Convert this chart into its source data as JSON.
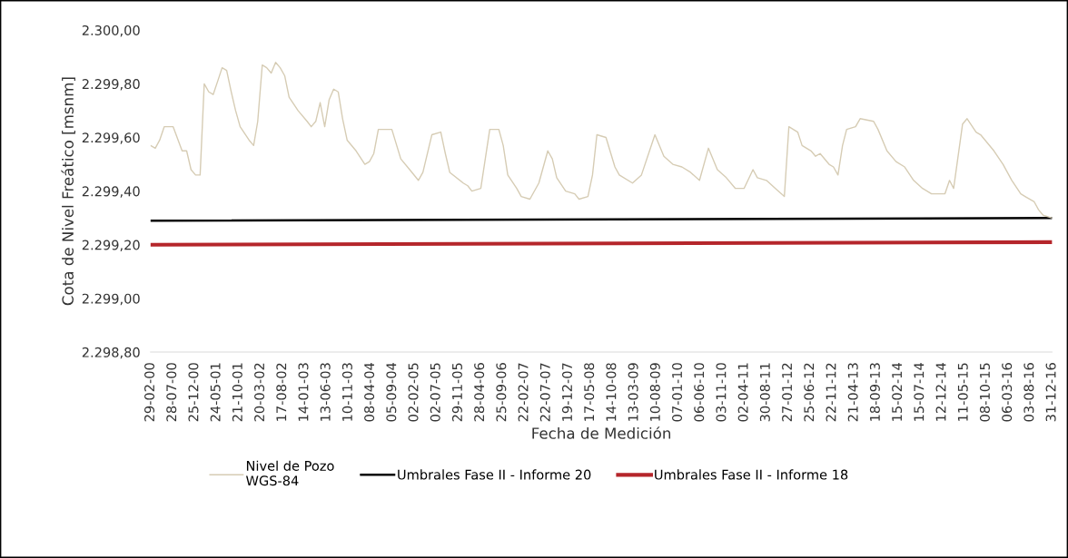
{
  "chart_data": {
    "type": "line",
    "xlabel": "Fecha de Medición",
    "ylabel": "Cota de Nivel Freático [msnm]",
    "xlim": [
      "2000-02-29",
      "2016-12-31"
    ],
    "xticks": [
      {
        "value": "2000-02-29",
        "label": "29-02-00"
      },
      {
        "value": "2000-07-28",
        "label": "28-07-00"
      },
      {
        "value": "2000-12-25",
        "label": "25-12-00"
      },
      {
        "value": "2001-05-24",
        "label": "24-05-01"
      },
      {
        "value": "2001-10-21",
        "label": "21-10-01"
      },
      {
        "value": "2002-03-20",
        "label": "20-03-02"
      },
      {
        "value": "2002-08-17",
        "label": "17-08-02"
      },
      {
        "value": "2003-01-14",
        "label": "14-01-03"
      },
      {
        "value": "2003-06-13",
        "label": "13-06-03"
      },
      {
        "value": "2003-11-10",
        "label": "10-11-03"
      },
      {
        "value": "2004-04-08",
        "label": "08-04-04"
      },
      {
        "value": "2004-09-05",
        "label": "05-09-04"
      },
      {
        "value": "2005-02-02",
        "label": "02-02-05"
      },
      {
        "value": "2005-07-02",
        "label": "02-07-05"
      },
      {
        "value": "2005-11-29",
        "label": "29-11-05"
      },
      {
        "value": "2006-04-28",
        "label": "28-04-06"
      },
      {
        "value": "2006-09-25",
        "label": "25-09-06"
      },
      {
        "value": "2007-02-22",
        "label": "22-02-07"
      },
      {
        "value": "2007-07-22",
        "label": "22-07-07"
      },
      {
        "value": "2007-12-19",
        "label": "19-12-07"
      },
      {
        "value": "2008-05-17",
        "label": "17-05-08"
      },
      {
        "value": "2008-10-14",
        "label": "14-10-08"
      },
      {
        "value": "2009-03-13",
        "label": "13-03-09"
      },
      {
        "value": "2009-08-10",
        "label": "10-08-09"
      },
      {
        "value": "2010-01-07",
        "label": "07-01-10"
      },
      {
        "value": "2010-06-06",
        "label": "06-06-10"
      },
      {
        "value": "2010-11-03",
        "label": "03-11-10"
      },
      {
        "value": "2011-04-02",
        "label": "02-04-11"
      },
      {
        "value": "2011-08-30",
        "label": "30-08-11"
      },
      {
        "value": "2012-01-27",
        "label": "27-01-12"
      },
      {
        "value": "2012-06-25",
        "label": "25-06-12"
      },
      {
        "value": "2012-11-22",
        "label": "22-11-12"
      },
      {
        "value": "2013-04-21",
        "label": "21-04-13"
      },
      {
        "value": "2013-09-18",
        "label": "18-09-13"
      },
      {
        "value": "2014-02-15",
        "label": "15-02-14"
      },
      {
        "value": "2014-07-15",
        "label": "15-07-14"
      },
      {
        "value": "2014-12-12",
        "label": "12-12-14"
      },
      {
        "value": "2015-05-11",
        "label": "11-05-15"
      },
      {
        "value": "2015-10-08",
        "label": "08-10-15"
      },
      {
        "value": "2016-03-06",
        "label": "06-03-16"
      },
      {
        "value": "2016-08-03",
        "label": "03-08-16"
      },
      {
        "value": "2016-12-31",
        "label": "31-12-16"
      }
    ],
    "ylim": [
      2298.8,
      2300.0
    ],
    "yticks": [
      {
        "value": 2298.8,
        "label": "2.298,80"
      },
      {
        "value": 2299.0,
        "label": "2.299,00"
      },
      {
        "value": 2299.2,
        "label": "2.299,20"
      },
      {
        "value": 2299.4,
        "label": "2.299,40"
      },
      {
        "value": 2299.6,
        "label": "2.299,60"
      },
      {
        "value": 2299.8,
        "label": "2.299,80"
      },
      {
        "value": 2300.0,
        "label": "2.300,00"
      }
    ],
    "grid": false,
    "legend": "bottom",
    "line_style": "solid",
    "marker": "none",
    "series": [
      {
        "name": "Nivel de Pozo\nWGS-84",
        "color": "#d6ccb4",
        "x": [
          "2000-02-29",
          "2000-04",
          "2000-05",
          "2000-06",
          "2000-07",
          "2000-08",
          "2000-10",
          "2000-11",
          "2000-12",
          "2001-01",
          "2001-02",
          "2001-03",
          "2001-04",
          "2001-05",
          "2001-06",
          "2001-07",
          "2001-08",
          "2001-09",
          "2001-10",
          "2001-11",
          "2002-01",
          "2002-02",
          "2002-03",
          "2002-04",
          "2002-05",
          "2002-06",
          "2002-07",
          "2002-08",
          "2002-09",
          "2002-10",
          "2002-12",
          "2003-02",
          "2003-03",
          "2003-04",
          "2003-05",
          "2003-06",
          "2003-07",
          "2003-08",
          "2003-09",
          "2003-10",
          "2003-11",
          "2004-01",
          "2004-03",
          "2004-04",
          "2004-05",
          "2004-06",
          "2004-08",
          "2004-09",
          "2004-11",
          "2005-01",
          "2005-03",
          "2005-04",
          "2005-06",
          "2005-08",
          "2005-09",
          "2005-10",
          "2006-01",
          "2006-02",
          "2006-03",
          "2006-05",
          "2006-07",
          "2006-09",
          "2006-10",
          "2006-11",
          "2007-01",
          "2007-02",
          "2007-04",
          "2007-06",
          "2007-08",
          "2007-09",
          "2007-10",
          "2007-12",
          "2008-02",
          "2008-03",
          "2008-05",
          "2008-06",
          "2008-07",
          "2008-09",
          "2008-11",
          "2008-12",
          "2009-03",
          "2009-05",
          "2009-08",
          "2009-10",
          "2009-12",
          "2010-02",
          "2010-04",
          "2010-06",
          "2010-08",
          "2010-10",
          "2010-12",
          "2011-02",
          "2011-04",
          "2011-06",
          "2011-07",
          "2011-09",
          "2011-11",
          "2012-01",
          "2012-02",
          "2012-04",
          "2012-05",
          "2012-07",
          "2012-08",
          "2012-09",
          "2012-11",
          "2012-12",
          "2013-01",
          "2013-02",
          "2013-03",
          "2013-05",
          "2013-06",
          "2013-09",
          "2013-10",
          "2013-12",
          "2014-02",
          "2014-04",
          "2014-06",
          "2014-08",
          "2014-10",
          "2015-01",
          "2015-02",
          "2015-03",
          "2015-05",
          "2015-06",
          "2015-08",
          "2015-09",
          "2015-12",
          "2016-02",
          "2016-04",
          "2016-06",
          "2016-07",
          "2016-09",
          "2016-10",
          "2016-11",
          "2016-12-31"
        ],
        "values": [
          2299.57,
          2299.56,
          2299.59,
          2299.64,
          2299.64,
          2299.64,
          2299.55,
          2299.55,
          2299.48,
          2299.46,
          2299.46,
          2299.8,
          2299.77,
          2299.76,
          2299.81,
          2299.86,
          2299.85,
          2299.77,
          2299.7,
          2299.64,
          2299.59,
          2299.57,
          2299.66,
          2299.87,
          2299.86,
          2299.84,
          2299.88,
          2299.86,
          2299.83,
          2299.75,
          2299.7,
          2299.66,
          2299.64,
          2299.66,
          2299.73,
          2299.64,
          2299.74,
          2299.78,
          2299.77,
          2299.67,
          2299.59,
          2299.55,
          2299.5,
          2299.51,
          2299.54,
          2299.63,
          2299.63,
          2299.63,
          2299.52,
          2299.48,
          2299.44,
          2299.47,
          2299.61,
          2299.62,
          2299.54,
          2299.47,
          2299.43,
          2299.42,
          2299.4,
          2299.41,
          2299.63,
          2299.63,
          2299.57,
          2299.46,
          2299.41,
          2299.38,
          2299.37,
          2299.43,
          2299.55,
          2299.52,
          2299.45,
          2299.4,
          2299.39,
          2299.37,
          2299.38,
          2299.46,
          2299.61,
          2299.6,
          2299.49,
          2299.46,
          2299.43,
          2299.46,
          2299.61,
          2299.53,
          2299.5,
          2299.49,
          2299.47,
          2299.44,
          2299.56,
          2299.48,
          2299.45,
          2299.41,
          2299.41,
          2299.48,
          2299.45,
          2299.44,
          2299.41,
          2299.38,
          2299.64,
          2299.62,
          2299.57,
          2299.55,
          2299.53,
          2299.54,
          2299.5,
          2299.49,
          2299.46,
          2299.57,
          2299.63,
          2299.64,
          2299.67,
          2299.66,
          2299.63,
          2299.55,
          2299.51,
          2299.49,
          2299.44,
          2299.41,
          2299.39,
          2299.39,
          2299.44,
          2299.41,
          2299.65,
          2299.67,
          2299.62,
          2299.61,
          2299.55,
          2299.5,
          2299.44,
          2299.39,
          2299.38,
          2299.36,
          2299.33,
          2299.31,
          2299.3
        ]
      },
      {
        "name": "Umbrales Fase II - Informe 20",
        "color": "#000000",
        "x": [
          "2000-02-29",
          "2016-12-31"
        ],
        "values": [
          2299.29,
          2299.3
        ]
      },
      {
        "name": "Umbrales Fase II - Informe 18",
        "color": "#b5262b",
        "x": [
          "2000-02-29",
          "2016-12-31"
        ],
        "values": [
          2299.2,
          2299.21
        ]
      }
    ]
  }
}
